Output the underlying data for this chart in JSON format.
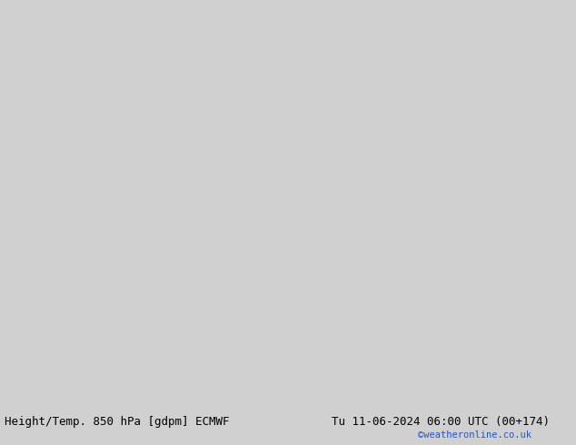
{
  "title_left": "Height/Temp. 850 hPa [gdpm] ECMWF",
  "title_right": "Tu 11-06-2024 06:00 UTC (00+174)",
  "credit": "©weatheronline.co.uk",
  "bg_color": "#d0d0d0",
  "land_color": "#b8e8a8",
  "ocean_color": "#d0d0d0",
  "border_color": "#888888",
  "title_fontsize": 9,
  "credit_color": "#2255cc",
  "fig_width": 6.34,
  "fig_height": 4.9,
  "dpi": 100,
  "extent": [
    -95,
    -25,
    -60,
    20
  ]
}
